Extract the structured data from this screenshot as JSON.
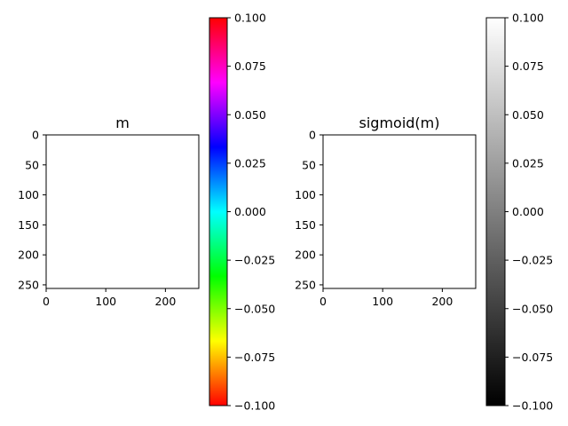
{
  "chart_data": [
    {
      "type": "heatmap",
      "title": "m",
      "xlabel": "",
      "ylabel": "",
      "xlim": [
        0,
        256
      ],
      "ylim": [
        256,
        0
      ],
      "xticks": [
        0,
        100,
        200
      ],
      "yticks": [
        0,
        50,
        100,
        150,
        200,
        250
      ],
      "values": [],
      "colorbar": {
        "colormap": "hsv",
        "range": [
          -0.1,
          0.1
        ],
        "ticks": [
          -0.1,
          -0.075,
          -0.05,
          -0.025,
          0.0,
          0.025,
          0.05,
          0.075,
          0.1
        ],
        "tick_labels": [
          "−0.100",
          "−0.075",
          "−0.050",
          "−0.025",
          "0.000",
          "0.025",
          "0.050",
          "0.075",
          "0.100"
        ]
      }
    },
    {
      "type": "heatmap",
      "title": "sigmoid(m)",
      "xlabel": "",
      "ylabel": "",
      "xlim": [
        0,
        256
      ],
      "ylim": [
        256,
        0
      ],
      "xticks": [
        0,
        100,
        200
      ],
      "yticks": [
        0,
        50,
        100,
        150,
        200,
        250
      ],
      "values": [],
      "colorbar": {
        "colormap": "gray",
        "range": [
          -0.1,
          0.1
        ],
        "ticks": [
          -0.1,
          -0.075,
          -0.05,
          -0.025,
          0.0,
          0.025,
          0.05,
          0.075,
          0.1
        ],
        "tick_labels": [
          "−0.100",
          "−0.075",
          "−0.050",
          "−0.025",
          "0.000",
          "0.025",
          "0.050",
          "0.075",
          "0.100"
        ]
      }
    }
  ],
  "colors": {
    "axis": "#000000",
    "background": "#ffffff"
  }
}
